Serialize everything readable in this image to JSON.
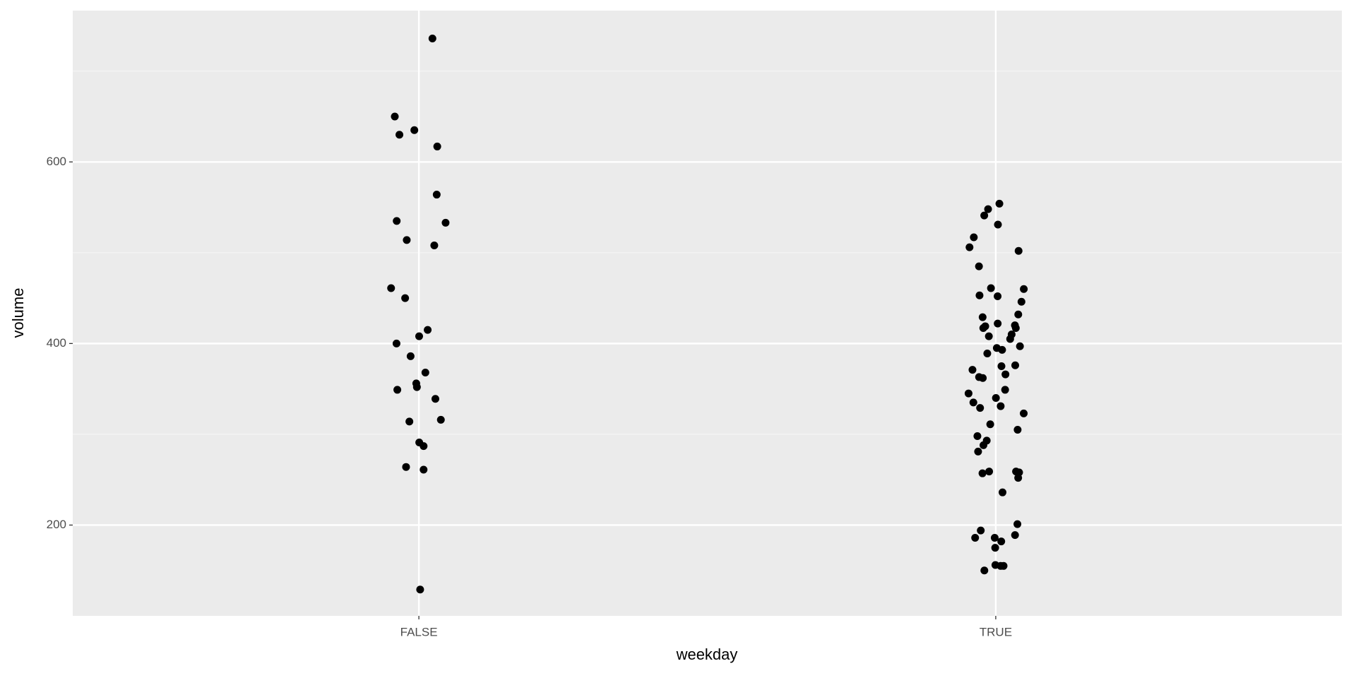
{
  "chart_data": {
    "type": "scatter",
    "x_label": "weekday",
    "y_label": "volume",
    "categories": [
      "FALSE",
      "TRUE"
    ],
    "values": [
      [
        736,
        650,
        635,
        617,
        630,
        564,
        535,
        533,
        514,
        508,
        461,
        450,
        415,
        408,
        400,
        386,
        368,
        356,
        352,
        349,
        339,
        316,
        314,
        291,
        287,
        264,
        261,
        129
      ],
      [
        554,
        548,
        541,
        531,
        517,
        506,
        502,
        485,
        461,
        460,
        453,
        452,
        446,
        432,
        429,
        422,
        420,
        419,
        417,
        417,
        410,
        408,
        405,
        397,
        395,
        393,
        389,
        376,
        375,
        371,
        366,
        363,
        362,
        349,
        345,
        340,
        335,
        331,
        329,
        323,
        311,
        305,
        298,
        293,
        288,
        281,
        259,
        259,
        258,
        257,
        252,
        236,
        201,
        194,
        189,
        186,
        186,
        182,
        175,
        156,
        155,
        155,
        150
      ]
    ],
    "color": "#000000",
    "ylim": [
      100,
      766.7
    ],
    "yticks": [
      200,
      400,
      600
    ],
    "minor_yticks": [
      300,
      500,
      700
    ],
    "grid": true
  }
}
